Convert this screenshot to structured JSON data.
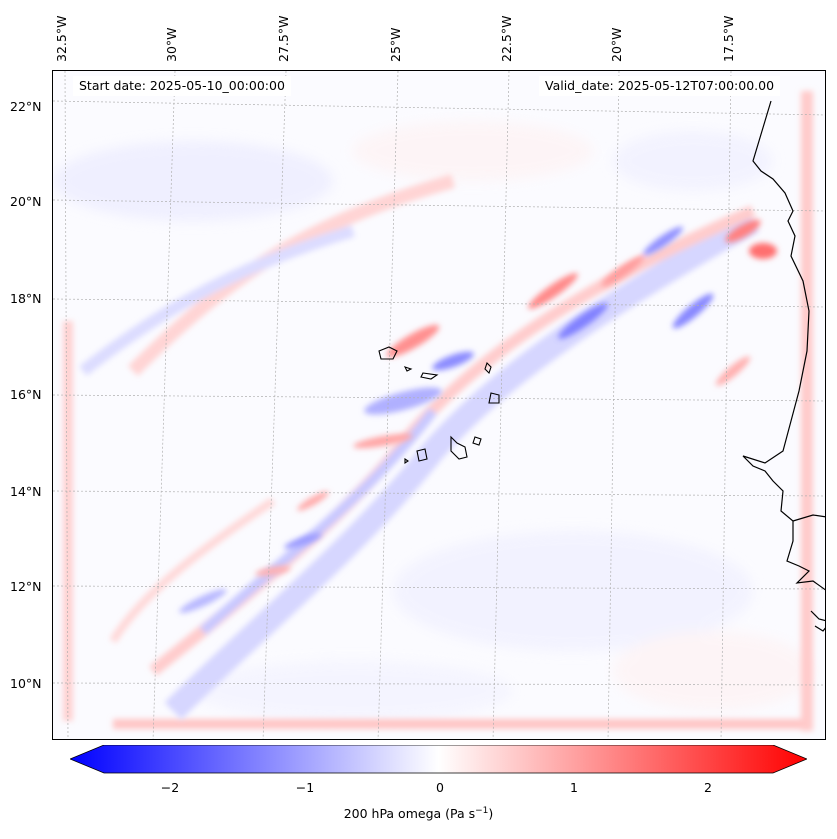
{
  "map": {
    "start_date_text": "Start date: 2025-05-10_00:00:00",
    "valid_date_text": "Valid_date: 2025-05-12T07:00:00.00",
    "longitude_labels": [
      "32.5°W",
      "30°W",
      "27.5°W",
      "25°W",
      "22.5°W",
      "20°W",
      "17.5°W"
    ],
    "latitude_labels": [
      "22°N",
      "20°N",
      "18°N",
      "16°N",
      "14°N",
      "12°N",
      "10°N"
    ]
  },
  "colorbar": {
    "ticks": [
      "−2",
      "−1",
      "0",
      "1",
      "2"
    ],
    "label": "200 hPa omega (Pa s",
    "label_unit_exponent": "−1",
    "label_close": ")",
    "range": [
      -2.6,
      2.6
    ],
    "colormap": "bwr",
    "min_color": "#0000ff",
    "mid_color": "#ffffff",
    "max_color": "#ff0000"
  },
  "colors": {
    "coastline": "#000000",
    "gridline": "#b0b0b0"
  }
}
